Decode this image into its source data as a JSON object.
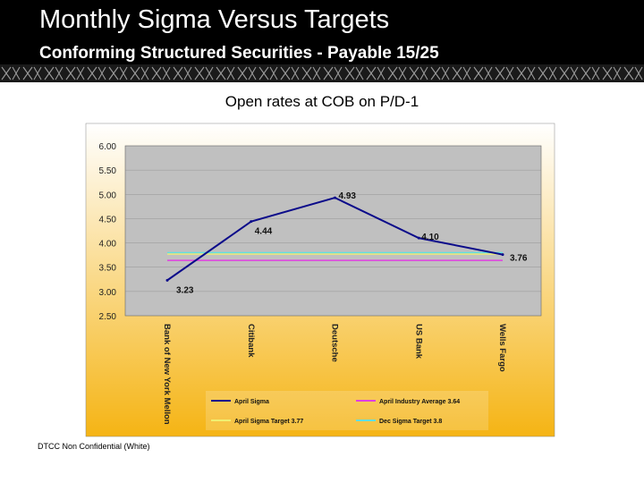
{
  "slide": {
    "title": "Monthly Sigma Versus Targets",
    "subtitle": "Conforming Structured Securities - Payable 15/25",
    "footer": "DTCC Non Confidential (White)"
  },
  "colors": {
    "header_bg": "#000000",
    "plot_bg": "#c0c0c0",
    "gradient_top": "#ffffff",
    "gradient_bottom": "#f5b414",
    "sigma_line": "#0b0b8a",
    "industry_avg": "#e040e0",
    "sigma_target": "#f0f070",
    "dec_target": "#60e0e0"
  },
  "chart_data": {
    "type": "line",
    "title": "Open rates at COB on P/D-1",
    "categories": [
      "Bank of New York Mellon",
      "Citibank",
      "Deutsche",
      "US Bank",
      "Wells Fargo"
    ],
    "ylim": [
      2.5,
      6.0
    ],
    "yticks": [
      "6.00",
      "5.50",
      "5.00",
      "4.50",
      "4.00",
      "3.50",
      "3.00",
      "2.50"
    ],
    "grid": true,
    "legend_position": "bottom",
    "series": [
      {
        "name": "April Sigma",
        "values": [
          3.23,
          4.44,
          4.93,
          4.1,
          3.76
        ],
        "labels": [
          "3.23",
          "4.44",
          "4.93",
          "4.10",
          "3.76"
        ],
        "color": "#0b0b8a"
      },
      {
        "name": "April Industry Average 3.64",
        "constant": 3.64,
        "color": "#e040e0"
      },
      {
        "name": "April Sigma Target 3.77",
        "constant": 3.77,
        "color": "#f0f070"
      },
      {
        "name": "Dec Sigma Target 3.8",
        "constant": 3.8,
        "color": "#60e0e0"
      }
    ]
  }
}
